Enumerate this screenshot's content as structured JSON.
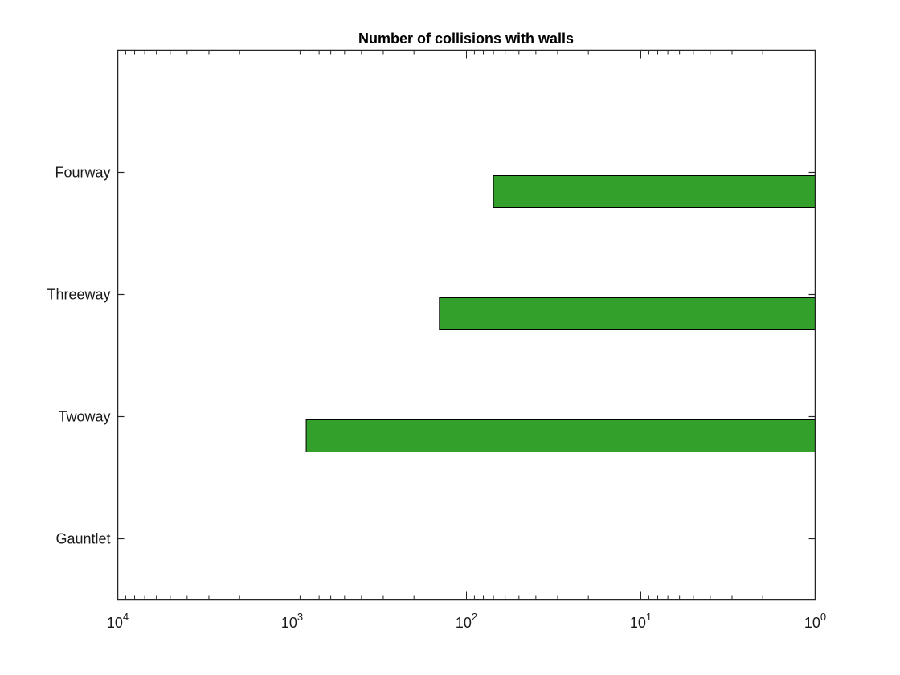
{
  "chart_data": {
    "type": "bar",
    "orientation": "horizontal",
    "title": "Number of collisions with walls",
    "xlabel": "",
    "ylabel": "",
    "categories": [
      "Gauntlet",
      "Twoway",
      "Threeway",
      "Fourway"
    ],
    "values": [
      1,
      830,
      143,
      70
    ],
    "xscale": "log",
    "xlim": [
      1,
      10000
    ],
    "x_direction": "reversed",
    "x_ticks": [
      {
        "value": 10000,
        "base": "10",
        "exp": "4"
      },
      {
        "value": 1000,
        "base": "10",
        "exp": "3"
      },
      {
        "value": 100,
        "base": "10",
        "exp": "2"
      },
      {
        "value": 10,
        "base": "10",
        "exp": "1"
      },
      {
        "value": 1,
        "base": "10",
        "exp": "0"
      }
    ],
    "grid": false,
    "bar_color": "#33a02c",
    "bar_edge_color": "#000000"
  }
}
